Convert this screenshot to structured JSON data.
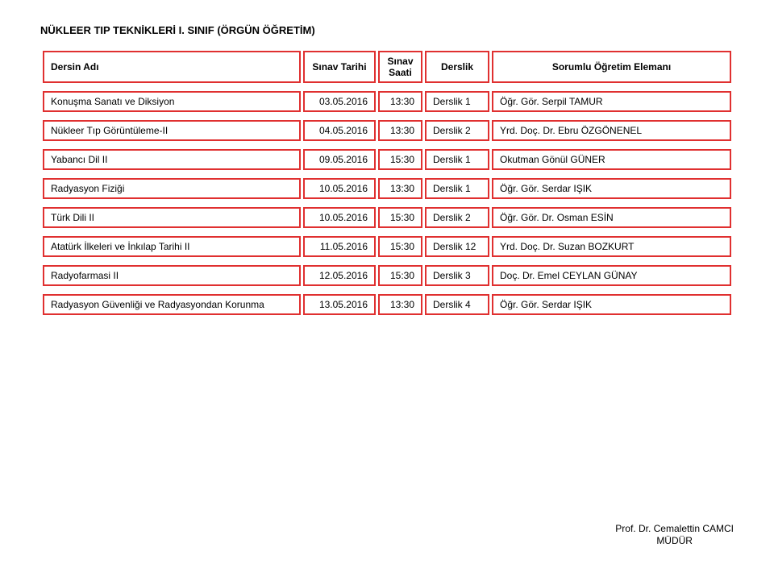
{
  "title": "NÜKLEER TIP TEKNİKLERİ I. SINIF (ÖRGÜN ÖĞRETİM)",
  "headers": {
    "dersin": "Dersin Adı",
    "tarih": "Sınav Tarihi",
    "saat": "Sınav Saati",
    "derslik": "Derslik",
    "sorumlu": "Sorumlu Öğretim Elemanı"
  },
  "rows": [
    {
      "dersin": "Konuşma Sanatı ve Diksiyon",
      "tarih": "03.05.2016",
      "saat": "13:30",
      "derslik": "Derslik 1",
      "sorumlu": "Öğr. Gör. Serpil TAMUR"
    },
    {
      "dersin": "Nükleer Tıp Görüntüleme-II",
      "tarih": "04.05.2016",
      "saat": "13:30",
      "derslik": "Derslik 2",
      "sorumlu": "Yrd. Doç. Dr. Ebru ÖZGÖNENEL"
    },
    {
      "dersin": "Yabancı Dil II",
      "tarih": "09.05.2016",
      "saat": "15:30",
      "derslik": "Derslik 1",
      "sorumlu": "Okutman Gönül GÜNER"
    },
    {
      "dersin": "Radyasyon Fiziği",
      "tarih": "10.05.2016",
      "saat": "13:30",
      "derslik": "Derslik 1",
      "sorumlu": "Öğr. Gör. Serdar IŞIK"
    },
    {
      "dersin": "Türk Dili II",
      "tarih": "10.05.2016",
      "saat": "15:30",
      "derslik": "Derslik 2",
      "sorumlu": "Öğr. Gör. Dr. Osman ESİN"
    },
    {
      "dersin": "Atatürk İlkeleri ve İnkılap Tarihi II",
      "tarih": "11.05.2016",
      "saat": "15:30",
      "derslik": "Derslik 12",
      "sorumlu": "Yrd. Doç. Dr. Suzan BOZKURT"
    },
    {
      "dersin": "Radyofarmasi II",
      "tarih": "12.05.2016",
      "saat": "15:30",
      "derslik": "Derslik 3",
      "sorumlu": "Doç. Dr. Emel CEYLAN GÜNAY"
    },
    {
      "dersin": "Radyasyon Güvenliği ve Radyasyondan Korunma",
      "tarih": "13.05.2016",
      "saat": "13:30",
      "derslik": "Derslik 4",
      "sorumlu": "Öğr. Gör. Serdar IŞIK"
    }
  ],
  "footer": {
    "line1": "Prof. Dr. Cemalettin CAMCI",
    "line2": "MÜDÜR"
  },
  "style": {
    "border_color": "#e03030",
    "background_color": "#ffffff",
    "text_color": "#000000",
    "title_fontsize": 13,
    "body_fontsize": 12
  }
}
